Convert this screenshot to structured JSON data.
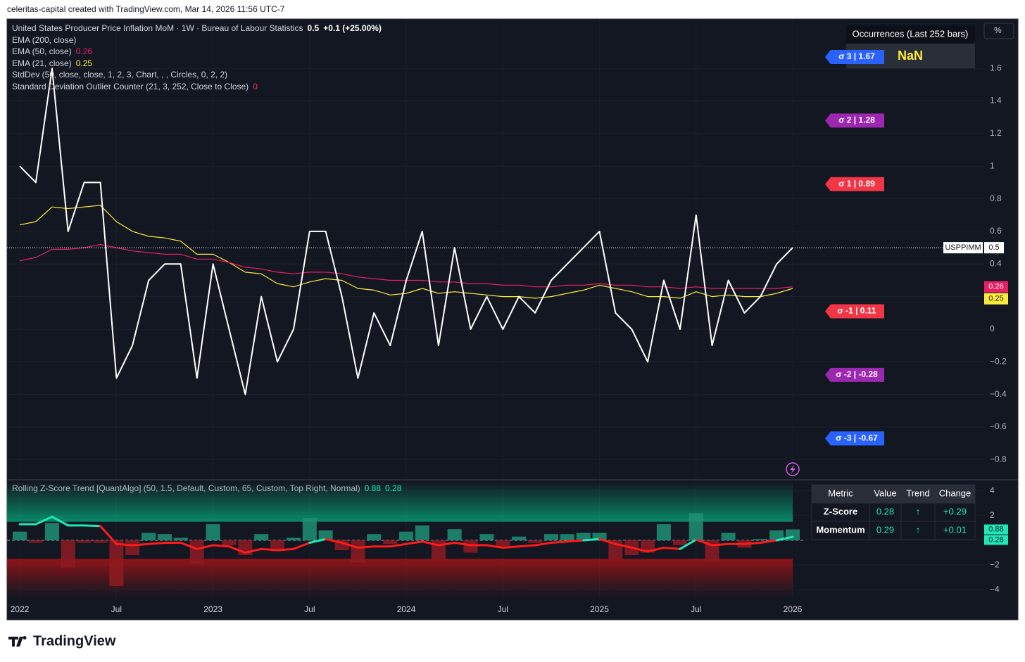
{
  "header": "celeritas-capital created with TradingView.com, Mar 14, 2026 11:56 UTC-7",
  "footer": "TradingView",
  "chart_data": [
    {
      "type": "line",
      "symbol": "USPPIMM",
      "scale_button": "%",
      "xlim": [
        2021.934,
        2026.991
      ],
      "ylim": [
        -0.915,
        1.903
      ],
      "yticks": [
        {
          "value": -0.8,
          "label": "−0.8"
        },
        {
          "value": -0.6,
          "label": "−0.6"
        },
        {
          "value": -0.4,
          "label": "−0.4"
        },
        {
          "value": -0.2,
          "label": "−0.2"
        },
        0,
        0.2,
        0.4,
        0.6,
        0.8,
        1,
        1.2,
        1.4,
        1.6
      ],
      "grid": true,
      "x": [
        2022,
        2022.083,
        2022.167,
        2022.25,
        2022.333,
        2022.417,
        2022.5,
        2022.583,
        2022.667,
        2022.75,
        2022.833,
        2022.917,
        2023,
        2023.083,
        2023.167,
        2023.25,
        2023.333,
        2023.417,
        2023.5,
        2023.583,
        2023.667,
        2023.75,
        2023.833,
        2023.917,
        2024,
        2024.083,
        2024.167,
        2024.25,
        2024.333,
        2024.417,
        2024.5,
        2024.583,
        2024.667,
        2024.75,
        2024.833,
        2024.917,
        2025,
        2025.083,
        2025.167,
        2025.25,
        2025.333,
        2025.417,
        2025.5,
        2025.583,
        2025.667,
        2025.75,
        2025.833,
        2025.917,
        2026
      ],
      "series": [
        {
          "name": "United States Producer Price Inflation MoM · 1W · Bureau of Labour Statistics",
          "change": "+0.1 (+25.00%)",
          "color": "#ffffff",
          "values": [
            1.0,
            0.9,
            1.6,
            0.6,
            0.9,
            0.9,
            -0.3,
            -0.1,
            0.3,
            0.4,
            0.4,
            -0.3,
            0.4,
            0.0,
            -0.4,
            0.2,
            -0.2,
            0.0,
            0.6,
            0.6,
            0.2,
            -0.3,
            0.1,
            -0.1,
            0.3,
            0.6,
            -0.1,
            0.5,
            0.0,
            0.2,
            0.0,
            0.2,
            0.1,
            0.3,
            0.4,
            0.5,
            0.6,
            0.1,
            0.0,
            -0.2,
            0.3,
            0.0,
            0.7,
            -0.1,
            0.3,
            0.1,
            0.2,
            0.4,
            0.5
          ]
        },
        {
          "name": "EMA (50, close)",
          "color": "#e91e63",
          "values": [
            0.42,
            0.44,
            0.49,
            0.49,
            0.5,
            0.52,
            0.5,
            0.48,
            0.47,
            0.46,
            0.46,
            0.43,
            0.43,
            0.41,
            0.38,
            0.37,
            0.35,
            0.34,
            0.35,
            0.35,
            0.34,
            0.32,
            0.31,
            0.3,
            0.3,
            0.3,
            0.29,
            0.29,
            0.28,
            0.28,
            0.27,
            0.27,
            0.26,
            0.26,
            0.27,
            0.27,
            0.28,
            0.27,
            0.27,
            0.26,
            0.26,
            0.25,
            0.26,
            0.25,
            0.25,
            0.25,
            0.25,
            0.25,
            0.26
          ]
        },
        {
          "name": "EMA (21, close)",
          "color": "#ffeb3b",
          "values": [
            0.64,
            0.66,
            0.75,
            0.74,
            0.75,
            0.76,
            0.66,
            0.6,
            0.57,
            0.56,
            0.54,
            0.46,
            0.46,
            0.41,
            0.35,
            0.34,
            0.28,
            0.26,
            0.29,
            0.31,
            0.3,
            0.25,
            0.24,
            0.21,
            0.22,
            0.25,
            0.22,
            0.23,
            0.22,
            0.21,
            0.2,
            0.2,
            0.19,
            0.2,
            0.22,
            0.24,
            0.27,
            0.25,
            0.23,
            0.2,
            0.2,
            0.19,
            0.23,
            0.2,
            0.21,
            0.2,
            0.2,
            0.22,
            0.25
          ]
        }
      ],
      "indicators": [
        {
          "name": "EMA (200, close)"
        },
        {
          "name": "StdDev (50, close, close, 1, 2, 3, Chart, , , Circles, 0, 2, 2)"
        },
        {
          "name": "Standard Deviation Outlier Counter (21, 3, 252, Close to Close)",
          "value": 0,
          "color": "#f23645"
        }
      ],
      "sigma_levels": [
        {
          "label": "σ 3 | 1.67",
          "value": 1.67,
          "color": "#2962ff"
        },
        {
          "label": "σ 2 | 1.28",
          "value": 1.28,
          "color": "#9c27b0"
        },
        {
          "label": "σ 1 | 0.89",
          "value": 0.89,
          "color": "#f23645"
        },
        {
          "label": "σ -1 | 0.11",
          "value": 0.11,
          "color": "#f23645"
        },
        {
          "label": "σ -2 | -0.28",
          "value": -0.28,
          "color": "#9c27b0"
        },
        {
          "label": "σ -3 | -0.67",
          "value": -0.67,
          "color": "#2962ff"
        }
      ],
      "occurrences": {
        "title": "Occurrences (Last 252 bars)",
        "value": "NaN"
      }
    },
    {
      "type": "bar",
      "title": "Rolling Z-Score Trend [QuantAlgo] (50, 1.5, Default, Custom, 65, Custom, Top Right, Normal)",
      "xlim": [
        2021.934,
        2026.991
      ],
      "ylim": [
        -4.659,
        4.716
      ],
      "yticks": [
        {
          "value": -4,
          "label": "−4"
        },
        {
          "value": -2,
          "label": "−2"
        },
        0,
        2,
        4
      ],
      "xticks": [
        2022,
        {
          "value": 2022.5,
          "label": "Jul"
        },
        2023,
        {
          "value": 2023.5,
          "label": "Jul"
        },
        2024,
        {
          "value": 2024.5,
          "label": "Jul"
        },
        2025,
        {
          "value": 2025.5,
          "label": "Jul"
        },
        2026
      ],
      "band_levels": [
        1.5,
        -1.5
      ],
      "x": [
        2022,
        2022.083,
        2022.167,
        2022.25,
        2022.333,
        2022.417,
        2022.5,
        2022.583,
        2022.667,
        2022.75,
        2022.833,
        2022.917,
        2023,
        2023.083,
        2023.167,
        2023.25,
        2023.333,
        2023.417,
        2023.5,
        2023.583,
        2023.667,
        2023.75,
        2023.833,
        2023.917,
        2024,
        2024.083,
        2024.167,
        2024.25,
        2024.333,
        2024.417,
        2024.5,
        2024.583,
        2024.667,
        2024.75,
        2024.833,
        2024.917,
        2025,
        2025.083,
        2025.167,
        2025.25,
        2025.333,
        2025.417,
        2025.5,
        2025.583,
        2025.667,
        2025.75,
        2025.833,
        2025.917,
        2026
      ],
      "bars": {
        "color": "#1f8f74",
        "negative_color": "#8e1b22",
        "values": [
          0.7,
          -0.2,
          1.4,
          -2.2,
          -0.2,
          -0.2,
          -3.7,
          -1.2,
          0.6,
          0.5,
          0.2,
          -1.9,
          1.3,
          -0.4,
          -1.2,
          0.5,
          -0.8,
          0.2,
          1.8,
          0.8,
          -0.8,
          -1.8,
          0.5,
          -0.3,
          0.7,
          1.2,
          -1.5,
          0.9,
          -1.0,
          0.5,
          -0.5,
          0.3,
          -0.2,
          0.5,
          0.5,
          0.6,
          0.6,
          -1.5,
          -1.2,
          -1.0,
          1.3,
          -0.4,
          2.2,
          -1.7,
          0.6,
          -0.6,
          0.1,
          0.8,
          0.88
        ]
      },
      "line": {
        "color": "#1de9b6",
        "negative_color": "#ff1a1a",
        "values": [
          1.3,
          1.3,
          1.9,
          1.2,
          1.2,
          1.15,
          -0.3,
          -0.4,
          -0.3,
          -0.2,
          -0.2,
          -0.7,
          -0.4,
          -0.5,
          -1.0,
          -0.7,
          -0.8,
          -0.7,
          -0.2,
          0.1,
          -0.2,
          -0.6,
          -0.5,
          -0.5,
          -0.3,
          -0.1,
          -0.4,
          -0.2,
          -0.4,
          -0.4,
          -0.6,
          -0.5,
          -0.4,
          -0.2,
          -0.1,
          0.0,
          0.1,
          -0.3,
          -0.6,
          -0.9,
          -0.6,
          -0.7,
          0.05,
          -0.4,
          -0.3,
          -0.3,
          -0.2,
          0.0,
          0.28
        ]
      },
      "table": {
        "value_color": "#1de9b6",
        "columns": [
          "Metric",
          "Value",
          "Trend",
          "Change"
        ],
        "rows": [
          [
            "Z-Score",
            "0.28",
            "↑",
            "+0.29"
          ],
          [
            "Momentum",
            "0.29",
            "↑",
            "+0.01"
          ]
        ]
      }
    }
  ]
}
